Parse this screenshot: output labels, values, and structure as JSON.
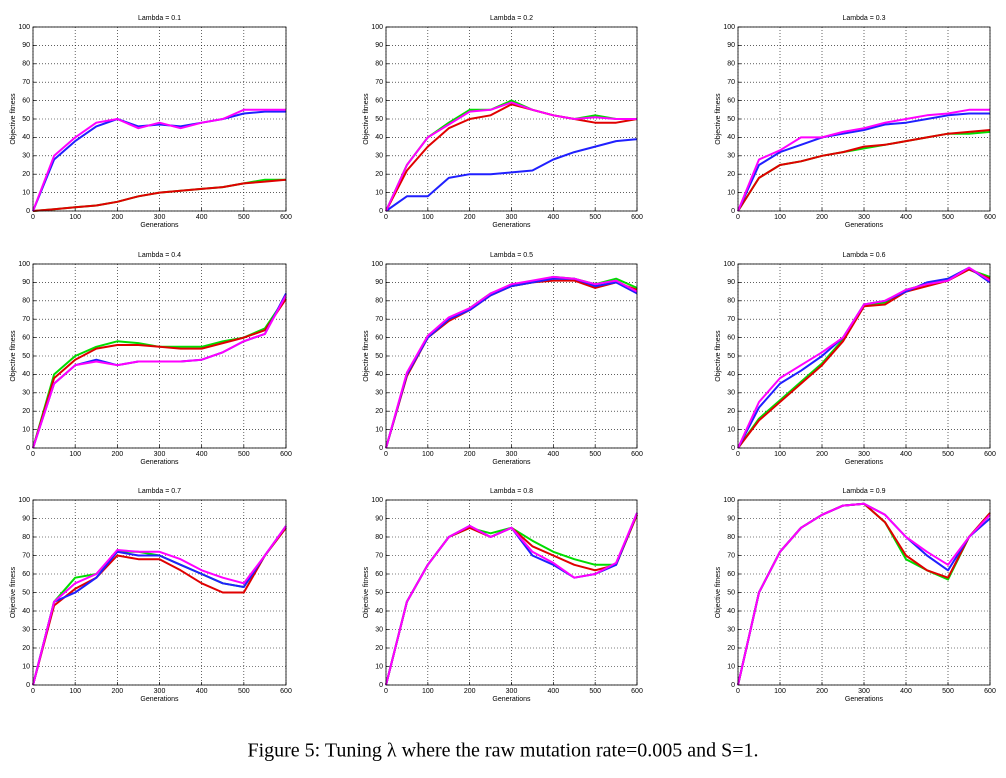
{
  "chart_data": [
    {
      "type": "line",
      "title": "Lambda = 0.1",
      "xlabel": "Generations",
      "ylabel": "Objective fitness",
      "x": [
        0,
        50,
        100,
        150,
        200,
        250,
        300,
        350,
        400,
        450,
        500,
        550,
        600
      ],
      "series": [
        {
          "color": "#00dd00",
          "values": [
            0,
            1,
            2,
            3,
            5,
            8,
            10,
            11,
            12,
            13,
            15,
            17,
            17
          ]
        },
        {
          "color": "#e00000",
          "values": [
            0,
            1,
            2,
            3,
            5,
            8,
            10,
            11,
            12,
            13,
            15,
            16,
            17
          ]
        },
        {
          "color": "#2020ff",
          "values": [
            0,
            28,
            38,
            46,
            50,
            46,
            47,
            46,
            48,
            50,
            53,
            54,
            54
          ]
        },
        {
          "color": "#ff00ff",
          "values": [
            0,
            30,
            40,
            48,
            50,
            45,
            48,
            45,
            48,
            50,
            55,
            55,
            55
          ]
        }
      ],
      "xlim": [
        0,
        600
      ],
      "ylim": [
        0,
        100
      ],
      "xticks": [
        0,
        100,
        200,
        300,
        400,
        500,
        600
      ],
      "yticks": [
        0,
        10,
        20,
        30,
        40,
        50,
        60,
        70,
        80,
        90,
        100
      ],
      "grid": true
    },
    {
      "type": "line",
      "title": "Lambda = 0.2",
      "xlabel": "Generations",
      "ylabel": "Objective fitness",
      "x": [
        0,
        50,
        100,
        150,
        200,
        250,
        300,
        350,
        400,
        450,
        500,
        550,
        600
      ],
      "series": [
        {
          "color": "#00dd00",
          "values": [
            0,
            25,
            40,
            48,
            55,
            55,
            60,
            55,
            52,
            50,
            52,
            50,
            50
          ]
        },
        {
          "color": "#e00000",
          "values": [
            0,
            22,
            35,
            45,
            50,
            52,
            58,
            55,
            52,
            50,
            48,
            48,
            50
          ]
        },
        {
          "color": "#2020ff",
          "values": [
            0,
            8,
            8,
            18,
            20,
            20,
            21,
            22,
            28,
            32,
            35,
            38,
            39
          ]
        },
        {
          "color": "#ff00ff",
          "values": [
            0,
            25,
            40,
            47,
            54,
            55,
            59,
            55,
            52,
            50,
            51,
            50,
            50
          ]
        }
      ],
      "xlim": [
        0,
        600
      ],
      "ylim": [
        0,
        100
      ],
      "xticks": [
        0,
        100,
        200,
        300,
        400,
        500,
        600
      ],
      "yticks": [
        0,
        10,
        20,
        30,
        40,
        50,
        60,
        70,
        80,
        90,
        100
      ],
      "grid": true
    },
    {
      "type": "line",
      "title": "Lambda = 0.3",
      "xlabel": "Generations",
      "ylabel": "Objective fitness",
      "x": [
        0,
        50,
        100,
        150,
        200,
        250,
        300,
        350,
        400,
        450,
        500,
        550,
        600
      ],
      "series": [
        {
          "color": "#00dd00",
          "values": [
            0,
            18,
            25,
            27,
            30,
            32,
            34,
            36,
            38,
            40,
            42,
            42,
            43
          ]
        },
        {
          "color": "#e00000",
          "values": [
            0,
            18,
            25,
            27,
            30,
            32,
            35,
            36,
            38,
            40,
            42,
            43,
            44
          ]
        },
        {
          "color": "#2020ff",
          "values": [
            0,
            25,
            32,
            36,
            40,
            42,
            44,
            47,
            48,
            50,
            52,
            53,
            53
          ]
        },
        {
          "color": "#ff00ff",
          "values": [
            0,
            28,
            33,
            40,
            40,
            43,
            45,
            48,
            50,
            52,
            53,
            55,
            55
          ]
        }
      ],
      "xlim": [
        0,
        600
      ],
      "ylim": [
        0,
        100
      ],
      "xticks": [
        0,
        100,
        200,
        300,
        400,
        500,
        600
      ],
      "yticks": [
        0,
        10,
        20,
        30,
        40,
        50,
        60,
        70,
        80,
        90,
        100
      ],
      "grid": true
    },
    {
      "type": "line",
      "title": "Lambda = 0.4",
      "xlabel": "Generations",
      "ylabel": "Objective fitness",
      "x": [
        0,
        50,
        100,
        150,
        200,
        250,
        300,
        350,
        400,
        450,
        500,
        550,
        600
      ],
      "series": [
        {
          "color": "#00dd00",
          "values": [
            0,
            40,
            50,
            55,
            58,
            57,
            55,
            55,
            55,
            58,
            60,
            65,
            82
          ]
        },
        {
          "color": "#e00000",
          "values": [
            0,
            38,
            48,
            54,
            56,
            56,
            55,
            54,
            54,
            57,
            60,
            64,
            81
          ]
        },
        {
          "color": "#2020ff",
          "values": [
            0,
            35,
            45,
            48,
            45,
            47,
            47,
            47,
            48,
            52,
            58,
            62,
            84
          ]
        },
        {
          "color": "#ff00ff",
          "values": [
            0,
            35,
            45,
            47,
            45,
            47,
            47,
            47,
            48,
            52,
            58,
            62,
            83
          ]
        }
      ],
      "xlim": [
        0,
        600
      ],
      "ylim": [
        0,
        100
      ],
      "xticks": [
        0,
        100,
        200,
        300,
        400,
        500,
        600
      ],
      "yticks": [
        0,
        10,
        20,
        30,
        40,
        50,
        60,
        70,
        80,
        90,
        100
      ],
      "grid": true
    },
    {
      "type": "line",
      "title": "Lambda = 0.5",
      "xlabel": "Generations",
      "ylabel": "Objective fitness",
      "x": [
        0,
        50,
        100,
        150,
        200,
        250,
        300,
        350,
        400,
        450,
        500,
        550,
        600
      ],
      "series": [
        {
          "color": "#00dd00",
          "values": [
            0,
            40,
            61,
            70,
            76,
            84,
            88,
            90,
            93,
            92,
            89,
            92,
            87
          ]
        },
        {
          "color": "#e00000",
          "values": [
            0,
            39,
            60,
            69,
            75,
            83,
            88,
            90,
            91,
            91,
            87,
            90,
            86
          ]
        },
        {
          "color": "#2020ff",
          "values": [
            0,
            40,
            60,
            70,
            75,
            83,
            88,
            90,
            92,
            92,
            88,
            90,
            84
          ]
        },
        {
          "color": "#ff00ff",
          "values": [
            0,
            41,
            61,
            71,
            76,
            84,
            89,
            91,
            93,
            92,
            89,
            91,
            85
          ]
        }
      ],
      "xlim": [
        0,
        600
      ],
      "ylim": [
        0,
        100
      ],
      "xticks": [
        0,
        100,
        200,
        300,
        400,
        500,
        600
      ],
      "yticks": [
        0,
        10,
        20,
        30,
        40,
        50,
        60,
        70,
        80,
        90,
        100
      ],
      "grid": true
    },
    {
      "type": "line",
      "title": "Lambda = 0.6",
      "xlabel": "Generations",
      "ylabel": "Objective fitness",
      "x": [
        0,
        50,
        100,
        150,
        200,
        250,
        300,
        350,
        400,
        450,
        500,
        550,
        600
      ],
      "series": [
        {
          "color": "#00dd00",
          "values": [
            0,
            16,
            26,
            36,
            46,
            59,
            78,
            79,
            86,
            89,
            92,
            97,
            93
          ]
        },
        {
          "color": "#e00000",
          "values": [
            0,
            15,
            25,
            35,
            45,
            58,
            77,
            78,
            85,
            88,
            91,
            97,
            92
          ]
        },
        {
          "color": "#2020ff",
          "values": [
            0,
            22,
            35,
            42,
            50,
            60,
            78,
            80,
            85,
            90,
            92,
            98,
            90
          ]
        },
        {
          "color": "#ff00ff",
          "values": [
            0,
            25,
            38,
            45,
            52,
            60,
            78,
            80,
            86,
            89,
            91,
            98,
            91
          ]
        }
      ],
      "xlim": [
        0,
        600
      ],
      "ylim": [
        0,
        100
      ],
      "xticks": [
        0,
        100,
        200,
        300,
        400,
        500,
        600
      ],
      "yticks": [
        0,
        10,
        20,
        30,
        40,
        50,
        60,
        70,
        80,
        90,
        100
      ],
      "grid": true
    },
    {
      "type": "line",
      "title": "Lambda = 0.7",
      "xlabel": "Generations",
      "ylabel": "Objective fitness",
      "x": [
        0,
        50,
        100,
        150,
        200,
        250,
        300,
        350,
        400,
        450,
        500,
        550,
        600
      ],
      "series": [
        {
          "color": "#00dd00",
          "values": [
            0,
            45,
            58,
            60,
            72,
            72,
            70,
            65,
            60,
            55,
            53,
            70,
            85
          ]
        },
        {
          "color": "#e00000",
          "values": [
            0,
            43,
            52,
            58,
            70,
            68,
            68,
            62,
            55,
            50,
            50,
            70,
            85
          ]
        },
        {
          "color": "#2020ff",
          "values": [
            0,
            45,
            50,
            58,
            72,
            70,
            70,
            65,
            60,
            55,
            53,
            70,
            86
          ]
        },
        {
          "color": "#ff00ff",
          "values": [
            0,
            45,
            55,
            60,
            73,
            72,
            72,
            68,
            62,
            58,
            55,
            70,
            86
          ]
        }
      ],
      "xlim": [
        0,
        600
      ],
      "ylim": [
        0,
        100
      ],
      "xticks": [
        0,
        100,
        200,
        300,
        400,
        500,
        600
      ],
      "yticks": [
        0,
        10,
        20,
        30,
        40,
        50,
        60,
        70,
        80,
        90,
        100
      ],
      "grid": true
    },
    {
      "type": "line",
      "title": "Lambda = 0.8",
      "xlabel": "Generations",
      "ylabel": "Objective fitness",
      "x": [
        0,
        50,
        100,
        150,
        200,
        250,
        300,
        350,
        400,
        450,
        500,
        550,
        600
      ],
      "series": [
        {
          "color": "#00dd00",
          "values": [
            0,
            45,
            65,
            80,
            85,
            82,
            85,
            78,
            72,
            68,
            65,
            65,
            92
          ]
        },
        {
          "color": "#e00000",
          "values": [
            0,
            45,
            65,
            80,
            85,
            80,
            85,
            75,
            70,
            65,
            62,
            65,
            92
          ]
        },
        {
          "color": "#2020ff",
          "values": [
            0,
            45,
            65,
            80,
            86,
            80,
            85,
            70,
            65,
            58,
            60,
            65,
            93
          ]
        },
        {
          "color": "#ff00ff",
          "values": [
            0,
            45,
            65,
            80,
            86,
            80,
            85,
            72,
            66,
            58,
            60,
            66,
            93
          ]
        }
      ],
      "xlim": [
        0,
        600
      ],
      "ylim": [
        0,
        100
      ],
      "xticks": [
        0,
        100,
        200,
        300,
        400,
        500,
        600
      ],
      "yticks": [
        0,
        10,
        20,
        30,
        40,
        50,
        60,
        70,
        80,
        90,
        100
      ],
      "grid": true
    },
    {
      "type": "line",
      "title": "Lambda = 0.9",
      "xlabel": "Generations",
      "ylabel": "Objective fitness",
      "x": [
        0,
        50,
        100,
        150,
        200,
        250,
        300,
        350,
        400,
        450,
        500,
        550,
        600
      ],
      "series": [
        {
          "color": "#00dd00",
          "values": [
            0,
            50,
            72,
            85,
            92,
            97,
            98,
            88,
            68,
            62,
            57,
            80,
            93
          ]
        },
        {
          "color": "#e00000",
          "values": [
            0,
            50,
            72,
            85,
            92,
            97,
            98,
            88,
            70,
            62,
            58,
            80,
            93
          ]
        },
        {
          "color": "#2020ff",
          "values": [
            0,
            50,
            72,
            85,
            92,
            97,
            98,
            92,
            80,
            70,
            62,
            80,
            90
          ]
        },
        {
          "color": "#ff00ff",
          "values": [
            0,
            50,
            72,
            85,
            92,
            97,
            98,
            92,
            80,
            72,
            65,
            80,
            92
          ]
        }
      ],
      "xlim": [
        0,
        600
      ],
      "ylim": [
        0,
        100
      ],
      "xticks": [
        0,
        100,
        200,
        300,
        400,
        500,
        600
      ],
      "yticks": [
        0,
        10,
        20,
        30,
        40,
        50,
        60,
        70,
        80,
        90,
        100
      ],
      "grid": true
    }
  ],
  "caption": "Figure 5: Tuning λ where the raw mutation rate=0.005 and S=1."
}
